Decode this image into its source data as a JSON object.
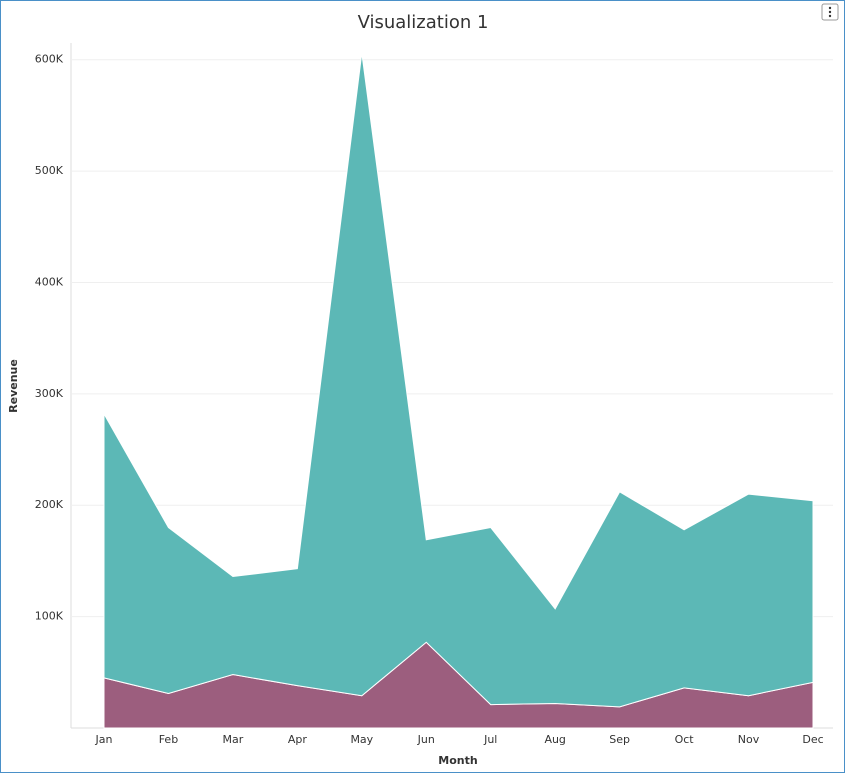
{
  "chart_data": {
    "type": "stacked-area",
    "title": "Visualization 1",
    "x_label": "Month",
    "y_label": "Revenue",
    "categories": [
      "Jan",
      "Feb",
      "Mar",
      "Apr",
      "May",
      "Jun",
      "Jul",
      "Aug",
      "Sep",
      "Oct",
      "Nov",
      "Dec"
    ],
    "series": [
      {
        "color": "#9c5e7e",
        "values": [
          45000,
          31000,
          48000,
          38000,
          29000,
          77000,
          21000,
          22000,
          19000,
          36000,
          29000,
          41000
        ]
      },
      {
        "color": "#5cb8b6",
        "values": [
          237000,
          149000,
          88000,
          105000,
          577000,
          92000,
          159000,
          85000,
          193000,
          142000,
          181000,
          163000
        ]
      }
    ],
    "ylim": [
      0,
      615000
    ],
    "yticks": [
      {
        "value": 100000,
        "label": "100K"
      },
      {
        "value": 200000,
        "label": "200K"
      },
      {
        "value": 300000,
        "label": "300K"
      },
      {
        "value": 400000,
        "label": "400K"
      },
      {
        "value": 500000,
        "label": "500K"
      },
      {
        "value": 600000,
        "label": "600K"
      }
    ],
    "grid": true
  }
}
